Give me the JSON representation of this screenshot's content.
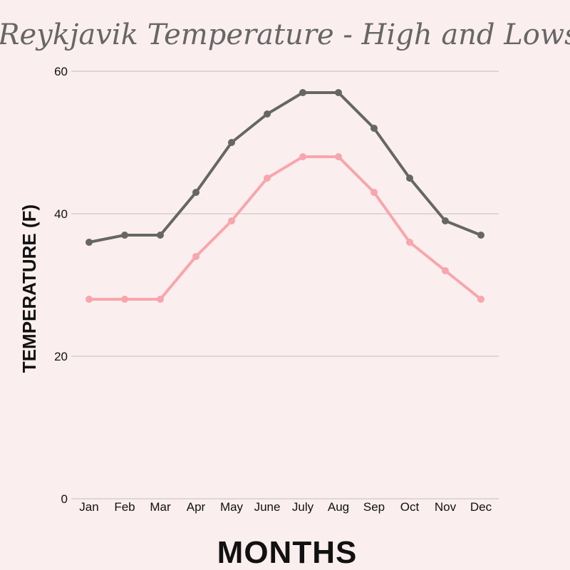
{
  "chart_data": {
    "type": "line",
    "title": "Reykjavik Temperature - High and Lows",
    "xlabel": "MONTHS",
    "ylabel": "TEMPERATURE (F)",
    "categories": [
      "Jan",
      "Feb",
      "Mar",
      "Apr",
      "May",
      "June",
      "July",
      "Aug",
      "Sep",
      "Oct",
      "Nov",
      "Dec"
    ],
    "ylim": [
      0,
      60
    ],
    "yticks": [
      0,
      20,
      40,
      60
    ],
    "grid": true,
    "series": [
      {
        "values": [
          36,
          37,
          37,
          43,
          50,
          54,
          57,
          57,
          52,
          45,
          39,
          37
        ],
        "color": "#666666"
      },
      {
        "values": [
          28,
          28,
          28,
          34,
          39,
          45,
          48,
          48,
          43,
          36,
          32,
          28
        ],
        "color": "#f7a6ad"
      }
    ]
  }
}
